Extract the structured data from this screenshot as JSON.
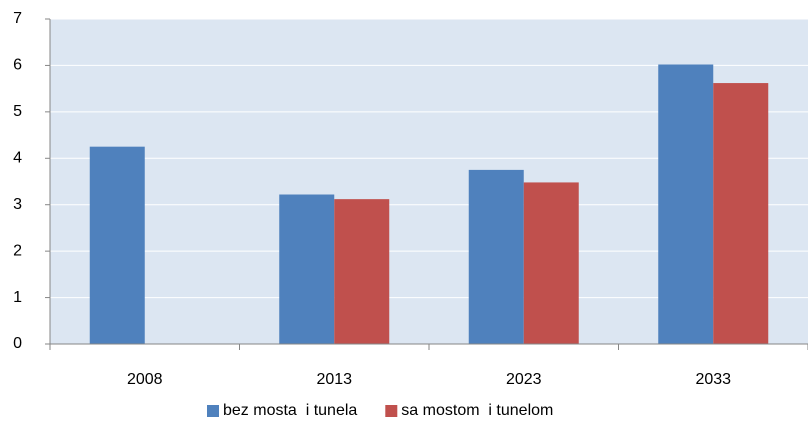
{
  "chart_data": {
    "type": "bar",
    "categories": [
      "2008",
      "2013",
      "2023",
      "2033"
    ],
    "series": [
      {
        "name": "bez mosta  i tunela",
        "color": "#4f81bd",
        "values": [
          4.25,
          3.22,
          3.75,
          6.02
        ]
      },
      {
        "name": "sa mostom  i tunelom",
        "color": "#c0504d",
        "values": [
          null,
          3.12,
          3.48,
          5.62
        ]
      }
    ],
    "ylim": [
      0,
      7
    ],
    "yticks": [
      0,
      1,
      2,
      3,
      4,
      5,
      6,
      7
    ],
    "grid": true,
    "legend": "bottom"
  }
}
